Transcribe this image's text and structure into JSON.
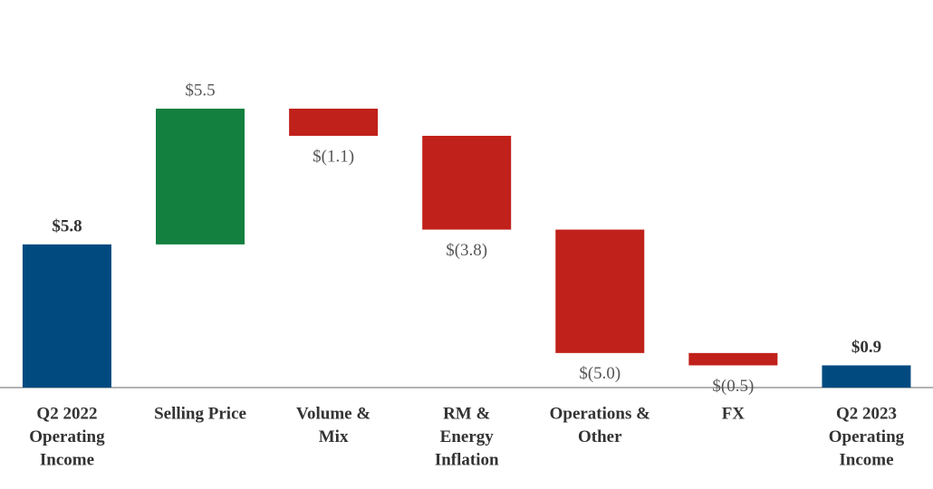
{
  "chart_data": {
    "type": "waterfall",
    "categories": [
      [
        "Q2 2022",
        "Operating",
        "Income"
      ],
      [
        "Selling Price"
      ],
      [
        "Volume &",
        "Mix"
      ],
      [
        "RM &",
        "Energy",
        "Inflation"
      ],
      [
        "Operations &",
        "Other"
      ],
      [
        "FX"
      ],
      [
        "Q2 2023",
        "Operating",
        "Income"
      ]
    ],
    "values": [
      5.8,
      5.5,
      -1.1,
      -3.8,
      -5.0,
      -0.5,
      0.9
    ],
    "value_labels": [
      "$5.8",
      "$5.5",
      "$(1.1)",
      "$(3.8)",
      "$(5.0)",
      "$(0.5)",
      "$0.9"
    ],
    "measure": [
      "total",
      "relative",
      "relative",
      "relative",
      "relative",
      "relative",
      "total"
    ],
    "colors": {
      "total": "#004a80",
      "increase": "#138040",
      "decrease": "#c0211a"
    }
  }
}
